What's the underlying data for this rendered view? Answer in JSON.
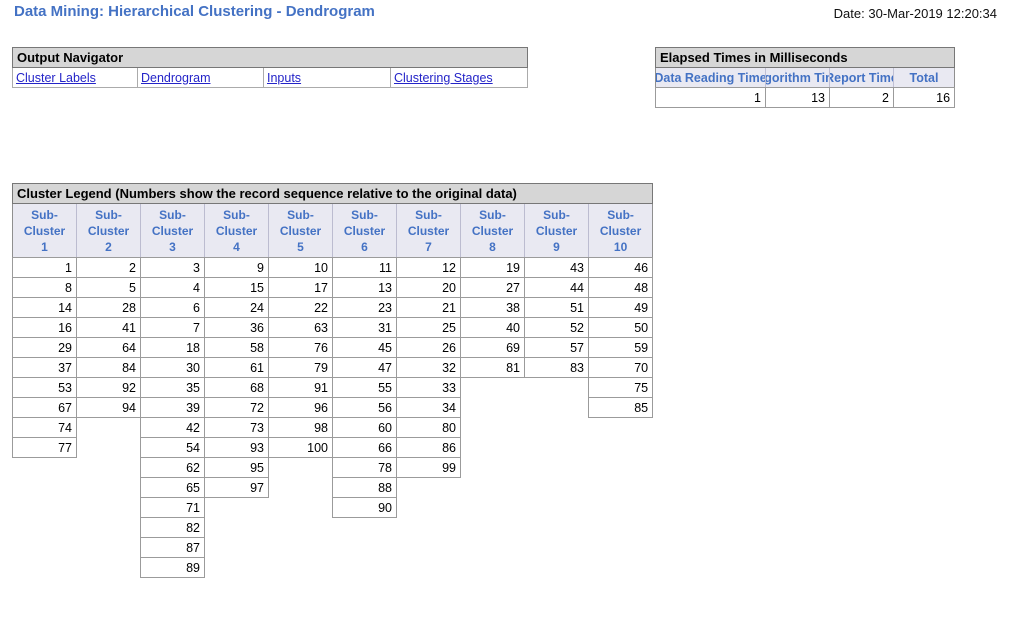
{
  "page": {
    "title": "Data Mining: Hierarchical Clustering - Dendrogram",
    "date": "Date: 30-Mar-2019 12:20:34"
  },
  "colors": {
    "title_blue": "#4472C4",
    "section_header_gray": "#D6D6D6",
    "column_header_lavender": "#E9E9F2",
    "column_header_text_blue": "#4472C4",
    "hyperlink_blue": "#2424C8",
    "cell_border_gray": "#9B9B9B"
  },
  "output_navigator": {
    "title": "Output Navigator",
    "links": [
      "Cluster Labels",
      "Dendrogram",
      "Inputs",
      "Clustering Stages"
    ]
  },
  "elapsed_times": {
    "title": "Elapsed Times in Milliseconds",
    "columns": [
      "Data Reading Time",
      "Algorithm Time",
      "Report Time",
      "Total"
    ],
    "values": [
      "1",
      "13",
      "2",
      "16"
    ]
  },
  "cluster_legend": {
    "title": "Cluster Legend (Numbers show the record sequence relative to the original data)",
    "columns": [
      {
        "label_lines": [
          "Sub-",
          "Cluster",
          "1"
        ],
        "values": [
          1,
          8,
          14,
          16,
          29,
          37,
          53,
          67,
          74,
          77
        ]
      },
      {
        "label_lines": [
          "Sub-",
          "Cluster",
          "2"
        ],
        "values": [
          2,
          5,
          28,
          41,
          64,
          84,
          92,
          94
        ]
      },
      {
        "label_lines": [
          "Sub-",
          "Cluster",
          "3"
        ],
        "values": [
          3,
          4,
          6,
          7,
          18,
          30,
          35,
          39,
          42,
          54,
          62,
          65,
          71,
          82,
          87,
          89
        ]
      },
      {
        "label_lines": [
          "Sub-",
          "Cluster",
          "4"
        ],
        "values": [
          9,
          15,
          24,
          36,
          58,
          61,
          68,
          72,
          73,
          93,
          95,
          97
        ]
      },
      {
        "label_lines": [
          "Sub-",
          "Cluster",
          "5"
        ],
        "values": [
          10,
          17,
          22,
          63,
          76,
          79,
          91,
          96,
          98,
          100
        ]
      },
      {
        "label_lines": [
          "Sub-",
          "Cluster",
          "6"
        ],
        "values": [
          11,
          13,
          23,
          31,
          45,
          47,
          55,
          56,
          60,
          66,
          78,
          88,
          90
        ]
      },
      {
        "label_lines": [
          "Sub-",
          "Cluster",
          "7"
        ],
        "values": [
          12,
          20,
          21,
          25,
          26,
          32,
          33,
          34,
          80,
          86,
          99
        ]
      },
      {
        "label_lines": [
          "Sub-",
          "Cluster",
          "8"
        ],
        "values": [
          19,
          27,
          38,
          40,
          69,
          81
        ]
      },
      {
        "label_lines": [
          "Sub-",
          "Cluster",
          "9"
        ],
        "values": [
          43,
          44,
          51,
          52,
          57,
          83
        ]
      },
      {
        "label_lines": [
          "Sub-",
          "Cluster",
          "10"
        ],
        "values": [
          46,
          48,
          49,
          50,
          59,
          70,
          75,
          85
        ]
      }
    ]
  }
}
